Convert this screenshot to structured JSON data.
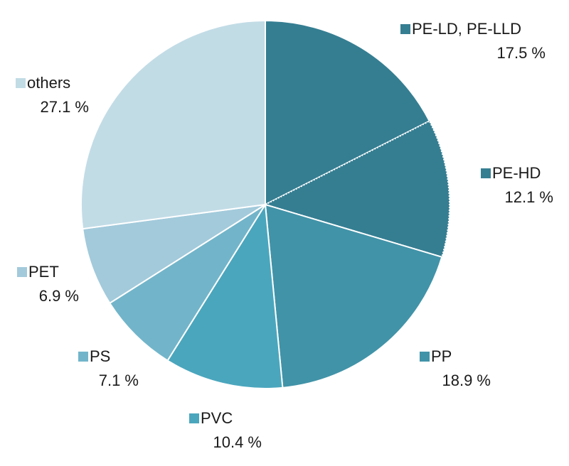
{
  "chart_data": {
    "type": "pie",
    "categories": [
      "PE-LD, PE-LLD",
      "PE-HD",
      "PP",
      "PVC",
      "PS",
      "PET",
      "others"
    ],
    "values": [
      17.5,
      12.1,
      18.9,
      10.4,
      7.1,
      6.9,
      27.1
    ],
    "value_labels": [
      "17.5 %",
      "12.1 %",
      "18.9 %",
      "10.4 %",
      "7.1 %",
      "6.9 %",
      "27.1 %"
    ],
    "colors": [
      "#357e92",
      "#357e92",
      "#4193a8",
      "#4aa6bd",
      "#72b5ca",
      "#a2cadb",
      "#c2dce6"
    ]
  }
}
